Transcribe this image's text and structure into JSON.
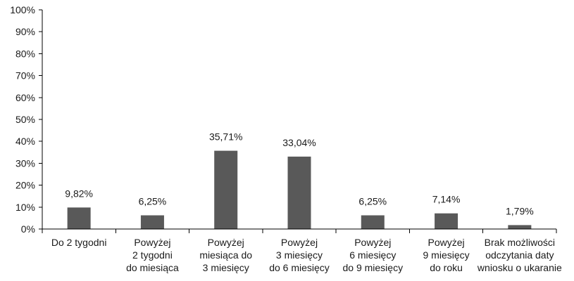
{
  "chart_data": {
    "type": "bar",
    "categories": [
      [
        "Do 2 tygodni"
      ],
      [
        "Powyżej",
        "2 tygodni",
        "do miesiąca"
      ],
      [
        "Powyżej",
        "miesiąca do",
        "3 miesięcy"
      ],
      [
        "Powyżej",
        "3 miesięcy",
        "do 6 miesięcy"
      ],
      [
        "Powyżej",
        "6 miesięcy",
        "do 9 miesięcy"
      ],
      [
        "Powyżej",
        "9 miesięcy",
        "do roku"
      ],
      [
        "Brak możliwości",
        "odczytania daty",
        "wniosku o ukaranie"
      ]
    ],
    "values": [
      9.82,
      6.25,
      35.71,
      33.04,
      6.25,
      7.14,
      1.79
    ],
    "data_labels": [
      "9,82%",
      "6,25%",
      "35,71%",
      "33,04%",
      "6,25%",
      "7,14%",
      "1,79%"
    ],
    "y_ticks": [
      "0%",
      "10%",
      "20%",
      "30%",
      "40%",
      "50%",
      "60%",
      "70%",
      "80%",
      "90%",
      "100%"
    ],
    "ylim": [
      0,
      100
    ],
    "title": "",
    "xlabel": "",
    "ylabel": "",
    "grid": false,
    "legend": "none",
    "bar_color": "#595959"
  }
}
